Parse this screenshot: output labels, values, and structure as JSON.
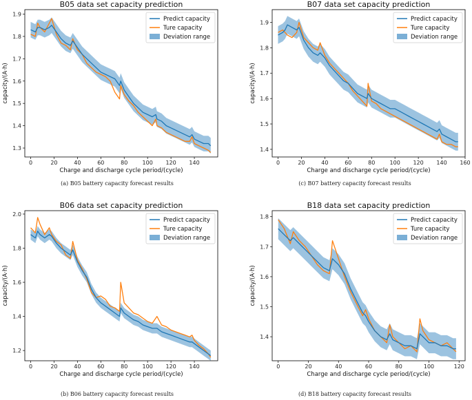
{
  "figure": {
    "captions": [
      "(a) B05 battery capacity forecast results",
      "(c) B07 battery capacity forecast results",
      "(b) B06 battery capacity forecast results",
      "(d) B18 battery capacity forecast results"
    ]
  },
  "colors": {
    "predict": "#1f77b4",
    "true": "#ff7f0e",
    "band": "#7bafd6"
  },
  "chart_data": [
    {
      "type": "line",
      "panel": "a",
      "title": "B05 data set capacity prediction",
      "xlabel": "Charge and discharge cycle period/(cycle)",
      "ylabel": "capacity/(A·h)",
      "xlim": [
        -5,
        160
      ],
      "ylim": [
        1.26,
        1.92
      ],
      "xticks": [
        0,
        20,
        40,
        60,
        80,
        100,
        120,
        140
      ],
      "yticks": [
        1.3,
        1.4,
        1.5,
        1.6,
        1.7,
        1.8,
        1.9
      ],
      "ytick_labels": [
        "1.3",
        "1.4",
        "1.5",
        "1.6",
        "1.7",
        "1.8",
        "1.9"
      ],
      "legend_position": "top-right",
      "legend": [
        "Predict capacity",
        "Ture capacity",
        "Deviation range"
      ],
      "band_halfwidth": 0.035,
      "series": [
        {
          "name": "Predict capacity",
          "x": [
            0,
            4,
            6,
            8,
            12,
            16,
            18,
            22,
            26,
            30,
            34,
            36,
            40,
            44,
            48,
            52,
            56,
            60,
            64,
            68,
            72,
            76,
            77,
            80,
            84,
            88,
            92,
            96,
            100,
            104,
            107,
            108,
            112,
            116,
            120,
            124,
            128,
            132,
            136,
            138,
            140,
            144,
            148,
            152,
            154
          ],
          "values": [
            1.83,
            1.82,
            1.84,
            1.84,
            1.83,
            1.84,
            1.85,
            1.82,
            1.79,
            1.77,
            1.76,
            1.78,
            1.75,
            1.72,
            1.7,
            1.68,
            1.66,
            1.64,
            1.63,
            1.62,
            1.61,
            1.58,
            1.6,
            1.56,
            1.53,
            1.5,
            1.48,
            1.46,
            1.45,
            1.44,
            1.45,
            1.43,
            1.42,
            1.4,
            1.39,
            1.38,
            1.37,
            1.36,
            1.35,
            1.36,
            1.34,
            1.33,
            1.32,
            1.32,
            1.31
          ]
        },
        {
          "name": "Ture capacity",
          "x": [
            0,
            4,
            6,
            8,
            12,
            16,
            18,
            22,
            26,
            30,
            34,
            36,
            40,
            44,
            48,
            52,
            56,
            60,
            64,
            68,
            72,
            76,
            77,
            80,
            84,
            88,
            92,
            96,
            100,
            104,
            107,
            108,
            112,
            116,
            120,
            124,
            128,
            132,
            136,
            138,
            140,
            144,
            148,
            152,
            154
          ],
          "values": [
            1.81,
            1.8,
            1.86,
            1.84,
            1.82,
            1.86,
            1.88,
            1.81,
            1.77,
            1.76,
            1.74,
            1.79,
            1.74,
            1.72,
            1.68,
            1.66,
            1.64,
            1.63,
            1.62,
            1.6,
            1.55,
            1.52,
            1.58,
            1.54,
            1.51,
            1.49,
            1.46,
            1.44,
            1.42,
            1.4,
            1.43,
            1.4,
            1.39,
            1.37,
            1.36,
            1.35,
            1.34,
            1.33,
            1.33,
            1.35,
            1.32,
            1.31,
            1.3,
            1.29,
            1.28
          ]
        }
      ]
    },
    {
      "type": "line",
      "panel": "c",
      "title": "B07 data set capacity prediction",
      "xlabel": "Charge and discharge cycle period/(cycle)",
      "ylabel": "capacity/(A·h)",
      "xlim": [
        -5,
        160
      ],
      "ylim": [
        1.37,
        1.95
      ],
      "xticks": [
        0,
        20,
        40,
        60,
        80,
        100,
        120,
        140,
        160
      ],
      "yticks": [
        1.4,
        1.5,
        1.6,
        1.7,
        1.8,
        1.9
      ],
      "ytick_labels": [
        "1.4",
        "1.5",
        "1.6",
        "1.7",
        "1.8",
        "1.9"
      ],
      "legend_position": "top-right",
      "legend": [
        "Predict capacity",
        "Ture capacity",
        "Deviation range"
      ],
      "band_halfwidth": 0.035,
      "series": [
        {
          "name": "Predict capacity",
          "x": [
            0,
            4,
            6,
            8,
            12,
            16,
            18,
            22,
            26,
            30,
            34,
            36,
            40,
            44,
            48,
            52,
            56,
            60,
            64,
            68,
            72,
            76,
            77,
            80,
            84,
            88,
            92,
            96,
            100,
            104,
            108,
            112,
            116,
            120,
            124,
            128,
            132,
            136,
            138,
            140,
            144,
            148,
            152,
            154
          ],
          "values": [
            1.85,
            1.86,
            1.87,
            1.89,
            1.88,
            1.87,
            1.88,
            1.83,
            1.8,
            1.78,
            1.77,
            1.78,
            1.76,
            1.73,
            1.71,
            1.69,
            1.67,
            1.66,
            1.64,
            1.62,
            1.61,
            1.6,
            1.62,
            1.6,
            1.59,
            1.58,
            1.57,
            1.56,
            1.56,
            1.55,
            1.54,
            1.53,
            1.52,
            1.51,
            1.5,
            1.49,
            1.48,
            1.47,
            1.48,
            1.46,
            1.45,
            1.44,
            1.43,
            1.43
          ]
        },
        {
          "name": "Ture capacity",
          "x": [
            0,
            4,
            6,
            8,
            12,
            16,
            18,
            22,
            26,
            30,
            34,
            36,
            40,
            44,
            48,
            52,
            56,
            60,
            64,
            68,
            72,
            76,
            77,
            80,
            84,
            88,
            92,
            96,
            100,
            104,
            108,
            112,
            116,
            120,
            124,
            128,
            132,
            136,
            138,
            140,
            144,
            148,
            152,
            154
          ],
          "values": [
            1.86,
            1.87,
            1.86,
            1.85,
            1.84,
            1.86,
            1.9,
            1.84,
            1.82,
            1.8,
            1.79,
            1.82,
            1.77,
            1.74,
            1.72,
            1.7,
            1.68,
            1.66,
            1.63,
            1.61,
            1.59,
            1.57,
            1.66,
            1.59,
            1.58,
            1.56,
            1.55,
            1.54,
            1.53,
            1.52,
            1.51,
            1.5,
            1.49,
            1.48,
            1.47,
            1.46,
            1.45,
            1.44,
            1.46,
            1.43,
            1.42,
            1.42,
            1.41,
            1.41
          ]
        }
      ]
    },
    {
      "type": "line",
      "panel": "b",
      "title": "B06 data set capacity prediction",
      "xlabel": "Charge and discharge cycle period/(cycle)",
      "ylabel": "capacity/(A·h)",
      "xlim": [
        -5,
        160
      ],
      "ylim": [
        1.14,
        2.02
      ],
      "xticks": [
        0,
        20,
        40,
        60,
        80,
        100,
        120,
        140
      ],
      "yticks": [
        1.2,
        1.4,
        1.6,
        1.8,
        2.0
      ],
      "ytick_labels": [
        "1.2",
        "1.4",
        "1.6",
        "1.8",
        "2.0"
      ],
      "legend_position": "top-right",
      "legend": [
        "Predict capacity",
        "Ture capacity",
        "Deviation range"
      ],
      "band_halfwidth": 0.03,
      "series": [
        {
          "name": "Predict capacity",
          "x": [
            0,
            4,
            6,
            8,
            12,
            16,
            18,
            22,
            26,
            30,
            34,
            36,
            40,
            44,
            48,
            52,
            56,
            60,
            64,
            68,
            72,
            76,
            77,
            80,
            84,
            88,
            92,
            96,
            100,
            104,
            108,
            112,
            116,
            120,
            124,
            128,
            132,
            136,
            138,
            140,
            144,
            148,
            152,
            154
          ],
          "values": [
            1.88,
            1.86,
            1.9,
            1.88,
            1.86,
            1.88,
            1.87,
            1.83,
            1.8,
            1.78,
            1.76,
            1.79,
            1.72,
            1.67,
            1.63,
            1.56,
            1.51,
            1.48,
            1.46,
            1.44,
            1.42,
            1.4,
            1.45,
            1.42,
            1.4,
            1.38,
            1.37,
            1.35,
            1.34,
            1.33,
            1.33,
            1.31,
            1.3,
            1.29,
            1.28,
            1.27,
            1.26,
            1.25,
            1.25,
            1.24,
            1.22,
            1.2,
            1.18,
            1.17
          ]
        },
        {
          "name": "Ture capacity",
          "x": [
            0,
            4,
            6,
            8,
            12,
            16,
            18,
            22,
            26,
            30,
            34,
            36,
            40,
            44,
            48,
            52,
            56,
            60,
            64,
            68,
            72,
            76,
            77,
            80,
            84,
            88,
            92,
            96,
            100,
            104,
            108,
            112,
            116,
            120,
            124,
            128,
            132,
            136,
            138,
            140,
            144,
            148,
            152,
            154
          ],
          "values": [
            1.92,
            1.89,
            1.98,
            1.94,
            1.88,
            1.92,
            1.88,
            1.84,
            1.82,
            1.76,
            1.74,
            1.84,
            1.73,
            1.68,
            1.62,
            1.54,
            1.51,
            1.52,
            1.5,
            1.46,
            1.45,
            1.43,
            1.6,
            1.48,
            1.45,
            1.42,
            1.41,
            1.39,
            1.37,
            1.36,
            1.4,
            1.35,
            1.34,
            1.32,
            1.31,
            1.3,
            1.29,
            1.28,
            1.29,
            1.26,
            1.23,
            1.21,
            1.18,
            1.16
          ]
        }
      ]
    },
    {
      "type": "line",
      "panel": "d",
      "title": "B18 data set capacity prediction",
      "xlabel": "Charge and discharge cycle period/(cycle)",
      "ylabel": "capacity/(A·h)",
      "xlim": [
        -4,
        124
      ],
      "ylim": [
        1.32,
        1.82
      ],
      "xticks": [
        0,
        20,
        40,
        60,
        80,
        100,
        120
      ],
      "yticks": [
        1.4,
        1.5,
        1.6,
        1.7,
        1.8
      ],
      "ytick_labels": [
        "1.4",
        "1.5",
        "1.6",
        "1.7",
        "1.8"
      ],
      "legend_position": "top-right",
      "legend": [
        "Predict capacity",
        "Ture capacity",
        "Deviation range"
      ],
      "band_halfwidth": 0.035,
      "series": [
        {
          "name": "Predict capacity",
          "x": [
            0,
            4,
            8,
            10,
            14,
            18,
            22,
            26,
            30,
            34,
            36,
            40,
            44,
            48,
            52,
            56,
            58,
            60,
            64,
            68,
            72,
            74,
            76,
            80,
            84,
            88,
            92,
            94,
            96,
            100,
            104,
            108,
            112,
            116,
            118
          ],
          "values": [
            1.76,
            1.74,
            1.72,
            1.73,
            1.71,
            1.69,
            1.67,
            1.65,
            1.63,
            1.62,
            1.66,
            1.64,
            1.61,
            1.56,
            1.52,
            1.48,
            1.47,
            1.45,
            1.42,
            1.4,
            1.39,
            1.41,
            1.39,
            1.38,
            1.37,
            1.37,
            1.36,
            1.41,
            1.4,
            1.38,
            1.38,
            1.37,
            1.37,
            1.36,
            1.36
          ]
        },
        {
          "name": "Ture capacity",
          "x": [
            0,
            4,
            8,
            10,
            14,
            18,
            22,
            26,
            30,
            34,
            36,
            40,
            44,
            48,
            52,
            56,
            58,
            60,
            64,
            68,
            72,
            74,
            76,
            80,
            84,
            88,
            92,
            94,
            96,
            100,
            104,
            108,
            112,
            116,
            118
          ],
          "values": [
            1.79,
            1.76,
            1.71,
            1.75,
            1.72,
            1.7,
            1.67,
            1.64,
            1.62,
            1.61,
            1.72,
            1.66,
            1.6,
            1.55,
            1.51,
            1.47,
            1.49,
            1.46,
            1.42,
            1.4,
            1.38,
            1.44,
            1.4,
            1.38,
            1.36,
            1.37,
            1.35,
            1.46,
            1.42,
            1.39,
            1.38,
            1.37,
            1.38,
            1.36,
            1.35
          ]
        }
      ]
    }
  ]
}
